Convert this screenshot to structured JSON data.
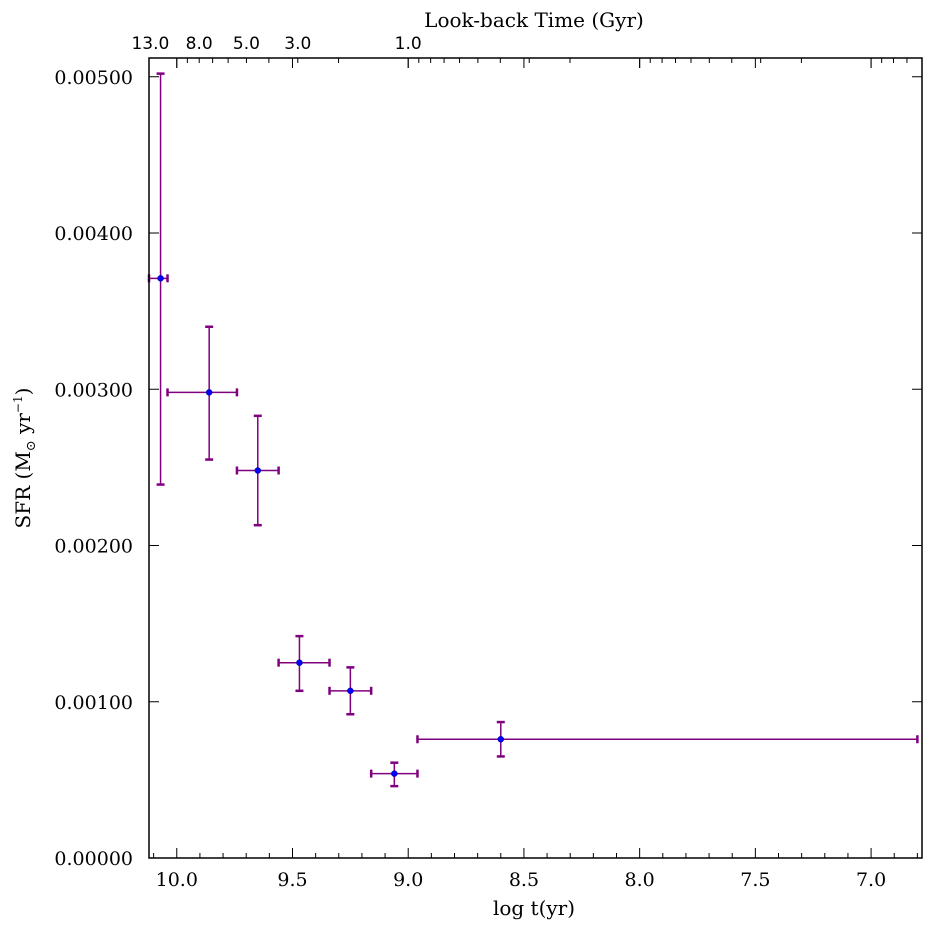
{
  "chart_data": {
    "type": "scatter",
    "title": "Look-back Time (Gyr)",
    "xlabel": "log t(yr)",
    "ylabel": "SFR (M",
    "ylabel_sub": "⊙",
    "ylabel_mid": " yr",
    "ylabel_sup": "−1",
    "ylabel_end": ")",
    "x_inverted": true,
    "xlim": [
      10.12,
      6.78
    ],
    "ylim": [
      0.0,
      0.00512
    ],
    "x_ticks": [
      10.0,
      9.5,
      9.0,
      8.5,
      8.0,
      7.5,
      7.0
    ],
    "x_tick_labels": [
      "10.0",
      "9.5",
      "9.0",
      "8.5",
      "8.0",
      "7.5",
      "7.0"
    ],
    "y_ticks": [
      0.0,
      0.001,
      0.002,
      0.003,
      0.004,
      0.005
    ],
    "y_tick_labels": [
      "0.00000",
      "0.00100",
      "0.00200",
      "0.00300",
      "0.00400",
      "0.00500"
    ],
    "top_axis": {
      "label": "Look-back Time (Gyr)",
      "tick_labels": [
        "13.0",
        "8.0",
        "5.0",
        "3.0",
        "1.0"
      ],
      "tick_values_gyr": [
        13.0,
        8.0,
        5.0,
        3.0,
        1.0
      ]
    },
    "series": [
      {
        "marker_color": "#0000ff",
        "errorbar_color": "#800080",
        "points": [
          {
            "x": 10.07,
            "y": 0.00371,
            "xerr_low": 10.12,
            "xerr_high": 10.04,
            "yerr_low": 0.00239,
            "yerr_high": 0.00502
          },
          {
            "x": 9.86,
            "y": 0.00298,
            "xerr_low": 10.04,
            "xerr_high": 9.74,
            "yerr_low": 0.00255,
            "yerr_high": 0.0034
          },
          {
            "x": 9.65,
            "y": 0.00248,
            "xerr_low": 9.74,
            "xerr_high": 9.56,
            "yerr_low": 0.00213,
            "yerr_high": 0.00283
          },
          {
            "x": 9.47,
            "y": 0.00125,
            "xerr_low": 9.56,
            "xerr_high": 9.34,
            "yerr_low": 0.00107,
            "yerr_high": 0.00142
          },
          {
            "x": 9.25,
            "y": 0.00107,
            "xerr_low": 9.34,
            "xerr_high": 9.16,
            "yerr_low": 0.00092,
            "yerr_high": 0.00122
          },
          {
            "x": 9.06,
            "y": 0.00054,
            "xerr_low": 9.16,
            "xerr_high": 8.96,
            "yerr_low": 0.00046,
            "yerr_high": 0.00061
          },
          {
            "x": 8.6,
            "y": 0.00076,
            "xerr_low": 8.96,
            "xerr_high": 6.8,
            "yerr_low": 0.00065,
            "yerr_high": 0.00087
          }
        ]
      }
    ],
    "grid": false,
    "legend": "none"
  }
}
